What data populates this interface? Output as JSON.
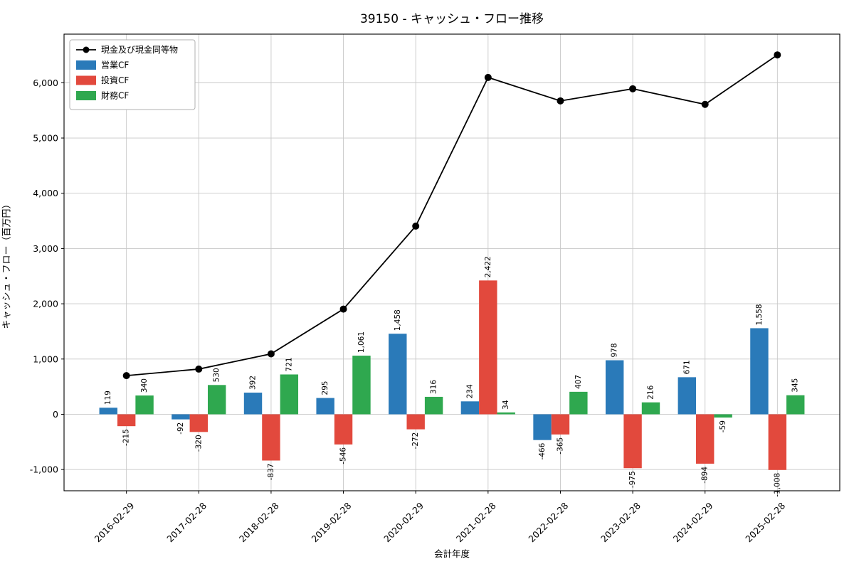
{
  "window": {
    "kind": "chart-figure"
  },
  "chart_data": {
    "type": "bar",
    "title": "39150 - キャッシュ・フロー推移",
    "xlabel": "会計年度",
    "ylabel": "キャッシュ・フロー（百万円）",
    "ylim": [
      -1384,
      6880
    ],
    "yticks": [
      -1000,
      0,
      1000,
      2000,
      3000,
      4000,
      5000,
      6000
    ],
    "grid": true,
    "legend_position": "upper left",
    "categories": [
      "2016-02-29",
      "2017-02-28",
      "2018-02-28",
      "2019-02-28",
      "2020-02-29",
      "2021-02-28",
      "2022-02-28",
      "2023-02-28",
      "2024-02-29",
      "2025-02-28"
    ],
    "series": [
      {
        "name": "営業CF",
        "kind": "bar",
        "color": "#2a7ab9",
        "values": [
          119,
          -92,
          392,
          295,
          1458,
          234,
          -466,
          978,
          671,
          1558
        ]
      },
      {
        "name": "投資CF",
        "kind": "bar",
        "color": "#e2493d",
        "values": [
          -215,
          -320,
          -837,
          -546,
          -272,
          2422,
          -365,
          -975,
          -894,
          -1008
        ]
      },
      {
        "name": "財務CF",
        "kind": "bar",
        "color": "#2fa84f",
        "values": [
          340,
          530,
          721,
          1061,
          316,
          34,
          407,
          216,
          -59,
          345
        ]
      },
      {
        "name": "現金及び現金同等物",
        "kind": "line",
        "color": "#000000",
        "values": [
          700,
          818,
          1094,
          1904,
          3406,
          6096,
          5672,
          5891,
          5609,
          6504
        ]
      }
    ],
    "bar_labels": true,
    "colors": {
      "grid": "#c8c8c8",
      "spine": "#000000",
      "legend_border": "#b0b0b0",
      "background": "#ffffff"
    }
  }
}
